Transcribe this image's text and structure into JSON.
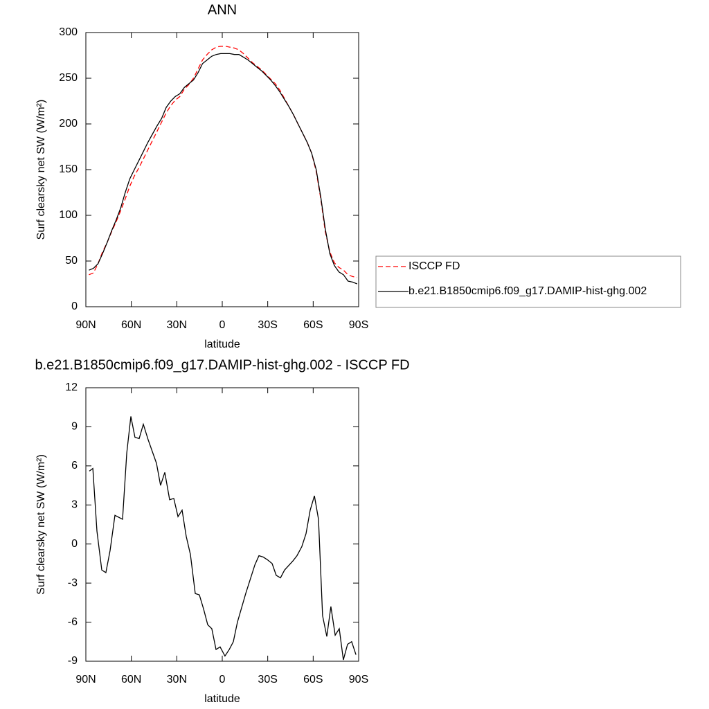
{
  "chart_data": [
    {
      "type": "line",
      "title": "ANN",
      "xlabel": "latitude",
      "ylabel": "Surf clearsky net SW (W/m²)",
      "x": [
        88,
        85,
        82,
        79,
        76,
        73,
        70,
        67,
        64,
        61,
        58,
        55,
        52,
        49,
        46,
        43,
        40,
        37,
        34,
        31,
        28,
        25,
        22,
        19,
        16,
        13,
        10,
        7,
        4,
        1,
        -2,
        -5,
        -8,
        -11,
        -14,
        -17,
        -20,
        -23,
        -26,
        -29,
        -32,
        -35,
        -38,
        -41,
        -44,
        -47,
        -50,
        -53,
        -56,
        -59,
        -62,
        -65,
        -68,
        -71,
        -74,
        -77,
        -80,
        -83,
        -86,
        -89
      ],
      "series": [
        {
          "name": "ISCCP FD",
          "color": "#ff0000",
          "dashed": true,
          "values": [
            35,
            37,
            47,
            60,
            70,
            82,
            93,
            105,
            118,
            132,
            143,
            152,
            162,
            172,
            182,
            192,
            202,
            212,
            220,
            226,
            230,
            238,
            243,
            250,
            260,
            270,
            276,
            281,
            284,
            285,
            285,
            284,
            283,
            281,
            277,
            272,
            267,
            263,
            259,
            254,
            249,
            244,
            237,
            228,
            219,
            210,
            200,
            190,
            180,
            168,
            148,
            118,
            82,
            60,
            48,
            43,
            40,
            35,
            33,
            32
          ]
        },
        {
          "name": "b.e21.B1850cmip6.f09_g17.DAMIP-hist-ghg.002",
          "color": "#000000",
          "dashed": false,
          "values": [
            40,
            42,
            47,
            58,
            70,
            83,
            95,
            108,
            125,
            140,
            150,
            160,
            170,
            180,
            189,
            198,
            206,
            218,
            225,
            230,
            233,
            240,
            244,
            248,
            256,
            266,
            270,
            274,
            276,
            277,
            277,
            277,
            276,
            276,
            273,
            270,
            266,
            262,
            258,
            253,
            248,
            242,
            235,
            227,
            219,
            210,
            200,
            190,
            180,
            168,
            150,
            120,
            85,
            58,
            45,
            38,
            35,
            28,
            27,
            25
          ]
        }
      ],
      "xlim": [
        90,
        -90
      ],
      "xticks": [
        {
          "value": 90,
          "label": "90N"
        },
        {
          "value": 60,
          "label": "60N"
        },
        {
          "value": 30,
          "label": "30N"
        },
        0,
        {
          "value": -30,
          "label": "30S"
        },
        {
          "value": -60,
          "label": "60S"
        },
        {
          "value": -90,
          "label": "90S"
        }
      ],
      "ylim": [
        0,
        300
      ],
      "yticks": [
        0,
        50,
        100,
        150,
        200,
        250,
        300
      ],
      "legend": "right"
    },
    {
      "type": "line",
      "title": "b.e21.B1850cmip6.f09_g17.DAMIP-hist-ghg.002 - ISCCP FD",
      "xlabel": "latitude",
      "ylabel": "Surf clearsky net SW (W/m²)",
      "x": [
        87.7,
        85.4,
        82.7,
        79.5,
        76.8,
        74,
        70.8,
        65.8,
        63,
        60.3,
        57.6,
        54.8,
        52.1,
        48.9,
        43.4,
        40.7,
        37.9,
        34.7,
        32,
        29.2,
        26.5,
        23.8,
        21,
        17.8,
        15.1,
        12.3,
        9.6,
        6.9,
        4.1,
        1.4,
        -1.8,
        -4.6,
        -7.3,
        -10,
        -15.5,
        -21.5,
        -24.2,
        -27,
        -29.7,
        -32.9,
        -35.6,
        -38.4,
        -41.1,
        -46.6,
        -49.3,
        -52.5,
        -55.3,
        -58,
        -60.8,
        -63.5,
        -66.2,
        -69,
        -71.7,
        -74.5,
        -77.2,
        -79.9,
        -82.7,
        -85.4,
        -88.2
      ],
      "series": [
        {
          "color": "#000000",
          "dashed": false,
          "values": [
            5.6,
            5.8,
            1,
            -2,
            -2.2,
            -0.5,
            2.2,
            1.9,
            7,
            9.8,
            8.2,
            8.1,
            9.2,
            8,
            6.2,
            4.5,
            5.5,
            3.4,
            3.5,
            2.1,
            2.6,
            0.6,
            -0.8,
            -3.8,
            -3.9,
            -5,
            -6.2,
            -6.5,
            -8.1,
            -7.9,
            -8.6,
            -8.1,
            -7.5,
            -6,
            -3.8,
            -1.6,
            -0.9,
            -1,
            -1.2,
            -1.5,
            -2.4,
            -2.6,
            -2,
            -1.3,
            -0.9,
            -0.2,
            0.8,
            2.6,
            3.7,
            1.9,
            -5.5,
            -7.1,
            -4.8,
            -7,
            -6.5,
            -8.9,
            -7.7,
            -7.5,
            -8.5
          ]
        }
      ],
      "xlim": [
        90,
        -90
      ],
      "xticks": [
        {
          "value": 90,
          "label": "90N"
        },
        {
          "value": 60,
          "label": "60N"
        },
        {
          "value": 30,
          "label": "30N"
        },
        0,
        {
          "value": -30,
          "label": "30S"
        },
        {
          "value": -60,
          "label": "60S"
        },
        {
          "value": -90,
          "label": "90S"
        }
      ],
      "ylim": [
        -9,
        12
      ],
      "yticks": [
        -9,
        -6,
        -3,
        0,
        3,
        6,
        9,
        12
      ]
    }
  ]
}
